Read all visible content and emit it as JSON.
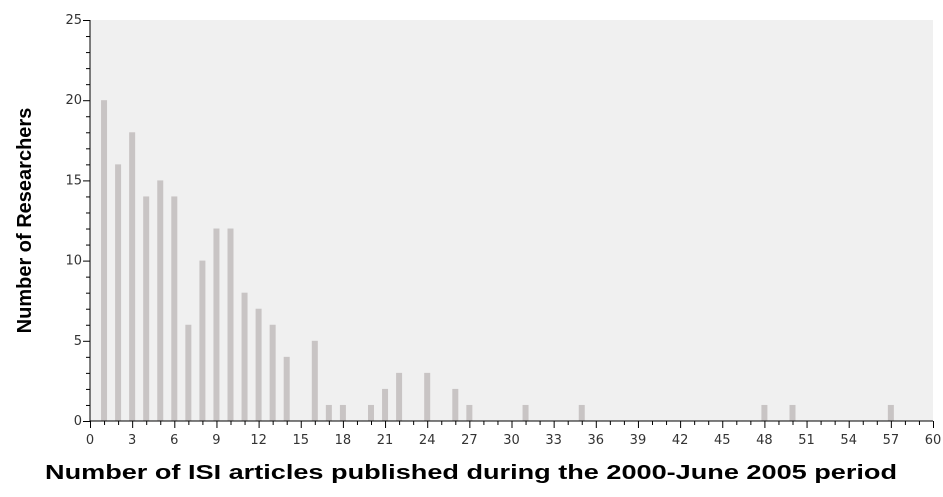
{
  "chart_data": {
    "type": "bar",
    "title": "",
    "xlabel": "Number of ISI articles published during the 2000-June 2005 period",
    "ylabel": "Number of Researchers",
    "xlim": [
      0,
      60
    ],
    "ylim": [
      0,
      25
    ],
    "x_ticks": [
      0,
      3,
      6,
      9,
      12,
      15,
      18,
      21,
      24,
      27,
      30,
      33,
      36,
      39,
      42,
      45,
      48,
      51,
      54,
      57,
      60
    ],
    "x_tick_labels": [
      "0",
      "3",
      "6",
      "9",
      "12",
      "15",
      "18",
      "21",
      "24",
      "27",
      "30",
      "33",
      "36",
      "39",
      "42",
      "45",
      "48",
      "51",
      "54",
      "57",
      "60"
    ],
    "y_ticks": [
      0,
      5,
      10,
      15,
      20,
      25
    ],
    "y_tick_labels": [
      "0",
      "5",
      "10",
      "15",
      "20",
      "25"
    ],
    "grid": false,
    "colors": {
      "plot_background": "#f0f0f0",
      "bar": "#c8c4c4",
      "axis": "#000000"
    },
    "series": [
      {
        "x": [
          1,
          2,
          3,
          4,
          5,
          6,
          7,
          8,
          9,
          10,
          11,
          12,
          13,
          14,
          16,
          17,
          18,
          20,
          21,
          22,
          24,
          26,
          27,
          31,
          35,
          48,
          50,
          57
        ],
        "values": [
          20,
          16,
          18,
          14,
          15,
          14,
          6,
          10,
          12,
          12,
          8,
          7,
          6,
          4,
          5,
          1,
          1,
          1,
          2,
          3,
          3,
          2,
          1,
          1,
          1,
          1,
          1,
          1
        ]
      }
    ]
  }
}
